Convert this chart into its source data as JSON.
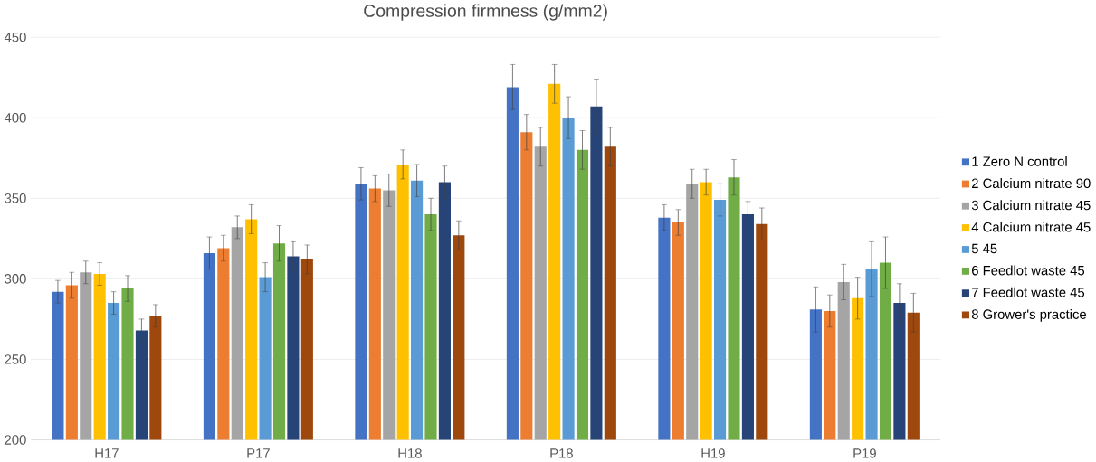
{
  "chart_data": {
    "type": "bar",
    "title": "Compression firmness (g/mm2)",
    "categories": [
      "H17",
      "P17",
      "H18",
      "P18",
      "H19",
      "P19"
    ],
    "series": [
      {
        "name": "1 Zero N control",
        "color": "#4472c4",
        "values": [
          292,
          316,
          359,
          419,
          338,
          281
        ],
        "errors": [
          7,
          10,
          10,
          14,
          8,
          14
        ]
      },
      {
        "name": "2 Calcium nitrate 90",
        "color": "#ed7d31",
        "values": [
          296,
          319,
          356,
          391,
          335,
          280
        ],
        "errors": [
          8,
          8,
          8,
          11,
          8,
          10
        ]
      },
      {
        "name": "3 Calcium nitrate 45",
        "color": "#a5a5a5",
        "values": [
          304,
          332,
          355,
          382,
          359,
          298
        ],
        "errors": [
          7,
          7,
          10,
          12,
          9,
          11
        ]
      },
      {
        "name": "4 Calcium nitrate 45",
        "color": "#ffc000",
        "values": [
          303,
          337,
          371,
          421,
          360,
          288
        ],
        "errors": [
          7,
          9,
          9,
          12,
          8,
          13
        ]
      },
      {
        "name": "5 45",
        "color": "#5b9bd5",
        "values": [
          285,
          301,
          361,
          400,
          349,
          306
        ],
        "errors": [
          7,
          9,
          10,
          13,
          10,
          17
        ]
      },
      {
        "name": "6 Feedlot waste 45",
        "color": "#70ad47",
        "values": [
          294,
          322,
          340,
          380,
          363,
          310
        ],
        "errors": [
          8,
          11,
          10,
          12,
          11,
          16
        ]
      },
      {
        "name": "7 Feedlot waste 45",
        "color": "#264478",
        "values": [
          268,
          314,
          360,
          407,
          340,
          285
        ],
        "errors": [
          7,
          9,
          10,
          17,
          8,
          12
        ]
      },
      {
        "name": "8 Grower's practice",
        "color": "#9e480e",
        "values": [
          277,
          312,
          327,
          382,
          334,
          279
        ],
        "errors": [
          7,
          9,
          9,
          12,
          10,
          12
        ]
      }
    ],
    "ylim": [
      200,
      450
    ],
    "yticks": [
      200,
      250,
      300,
      350,
      400,
      450
    ],
    "grid": "y",
    "legend": "right"
  }
}
